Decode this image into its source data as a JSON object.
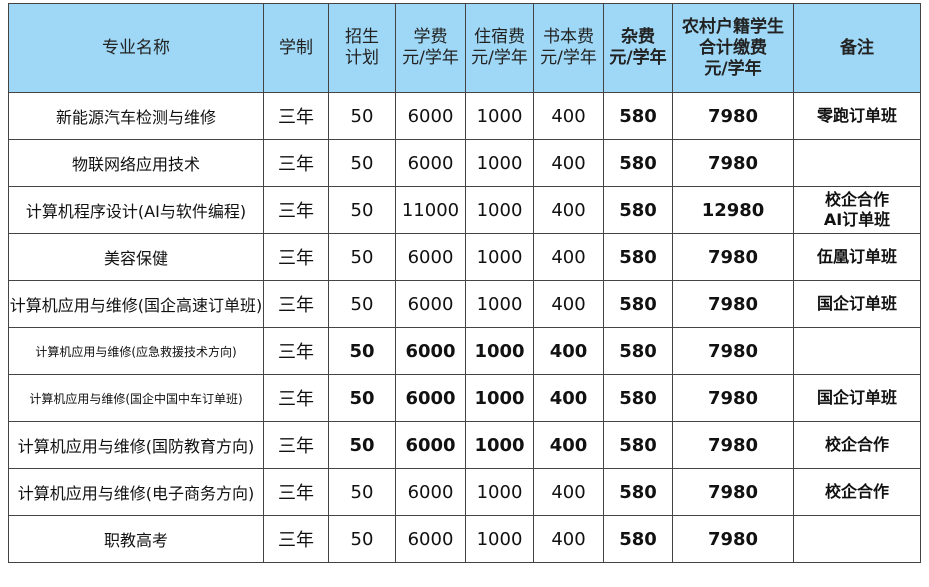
{
  "colors": {
    "header_bg": "#9fd8f6"
  },
  "headers": [
    "专业名称",
    "学制",
    "招生\n计划",
    "学费\n元/学年",
    "住宿费\n元/学年",
    "书本费\n元/学年",
    "杂费\n元/学年",
    "农村户籍学生\n合计缴费\n元/学年",
    "备注"
  ],
  "rows": [
    {
      "name": "新能源汽车检测与维修",
      "years": "三年",
      "plan": "50",
      "tuition": "6000",
      "dorm": "1000",
      "books": "400",
      "misc": "580",
      "total": "7980",
      "note": "零跑订单班"
    },
    {
      "name": "物联网络应用技术",
      "years": "三年",
      "plan": "50",
      "tuition": "6000",
      "dorm": "1000",
      "books": "400",
      "misc": "580",
      "total": "7980",
      "note": ""
    },
    {
      "name": "计算机程序设计(AI与软件编程)",
      "years": "三年",
      "plan": "50",
      "tuition": "11000",
      "dorm": "1000",
      "books": "400",
      "misc": "580",
      "total": "12980",
      "note": "校企合作\nAI订单班"
    },
    {
      "name": "美容保健",
      "years": "三年",
      "plan": "50",
      "tuition": "6000",
      "dorm": "1000",
      "books": "400",
      "misc": "580",
      "total": "7980",
      "note": "伍凰订单班"
    },
    {
      "name": "计算机应用与维修(国企高速订单班)",
      "years": "三年",
      "plan": "50",
      "tuition": "6000",
      "dorm": "1000",
      "books": "400",
      "misc": "580",
      "total": "7980",
      "note": "国企订单班"
    },
    {
      "name": "计算机应用与维修(应急救援技术方向)",
      "years": "三年",
      "plan": "50",
      "tuition": "6000",
      "dorm": "1000",
      "books": "400",
      "misc": "580",
      "total": "7980",
      "note": ""
    },
    {
      "name": "计算机应用与维修(国企中国中车订单班)",
      "years": "三年",
      "plan": "50",
      "tuition": "6000",
      "dorm": "1000",
      "books": "400",
      "misc": "580",
      "total": "7980",
      "note": "国企订单班"
    },
    {
      "name": "计算机应用与维修(国防教育方向)",
      "years": "三年",
      "plan": "50",
      "tuition": "6000",
      "dorm": "1000",
      "books": "400",
      "misc": "580",
      "total": "7980",
      "note": "校企合作"
    },
    {
      "name": "计算机应用与维修(电子商务方向)",
      "years": "三年",
      "plan": "50",
      "tuition": "6000",
      "dorm": "1000",
      "books": "400",
      "misc": "580",
      "total": "7980",
      "note": "校企合作"
    },
    {
      "name": "职教高考",
      "years": "三年",
      "plan": "50",
      "tuition": "6000",
      "dorm": "1000",
      "books": "400",
      "misc": "580",
      "total": "7980",
      "note": ""
    }
  ]
}
